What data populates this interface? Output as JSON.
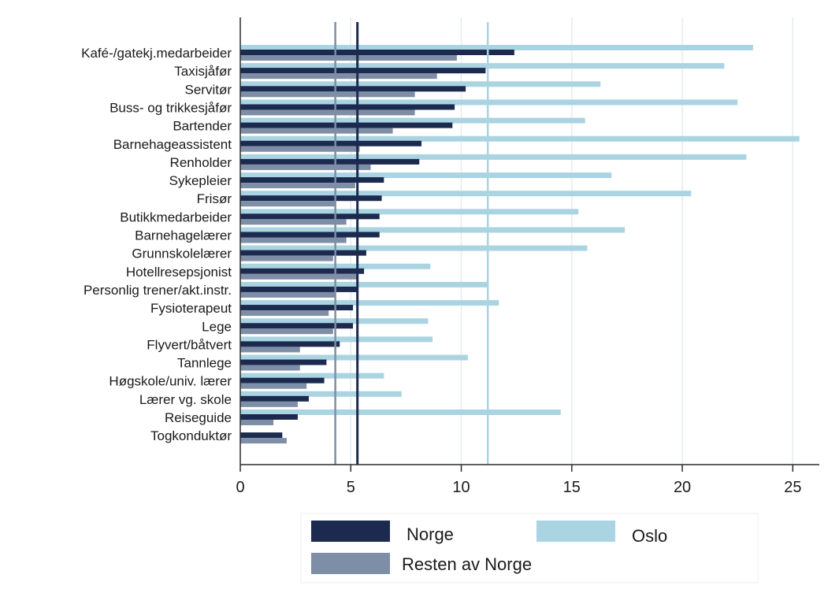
{
  "chart_data": {
    "type": "bar",
    "orientation": "horizontal",
    "title": "",
    "xlabel": "",
    "ylabel": "",
    "xlim": [
      0,
      26.2
    ],
    "xticks": [
      0,
      5,
      10,
      15,
      20,
      25
    ],
    "grid": true,
    "legend_position": "bottom",
    "categories": [
      "Kafé-/gatekj.medarbeider",
      "Taxisjåfør",
      "Servitør",
      "Buss- og trikkesjåfør",
      "Bartender",
      "Barnehageassistent",
      "Renholder",
      "Sykepleier",
      "Frisør",
      "Butikkmedarbeider",
      "Barnehagelærer",
      "Grunnskolelærer",
      "Hotellresepsjonist",
      "Personlig trener/akt.instr.",
      "Fysioterapeut",
      "Lege",
      "Flyvert/båtvert",
      "Tannlege",
      "Høgskole/univ. lærer",
      "Lærer vg. skole",
      "Reiseguide",
      "Togkonduktør"
    ],
    "series": [
      {
        "name": "Oslo",
        "color": "#aad4e2",
        "values": [
          23.2,
          21.9,
          16.3,
          22.5,
          15.6,
          25.3,
          22.9,
          16.8,
          20.4,
          15.3,
          17.4,
          15.7,
          8.6,
          11.2,
          11.7,
          8.5,
          8.7,
          10.3,
          6.5,
          7.3,
          14.5,
          0
        ]
      },
      {
        "name": "Norge",
        "color": "#1b2a4e",
        "values": [
          12.4,
          11.1,
          10.2,
          9.7,
          9.6,
          8.2,
          8.1,
          6.5,
          6.4,
          6.3,
          6.3,
          5.7,
          5.6,
          5.3,
          5.1,
          5.1,
          4.5,
          3.9,
          3.8,
          3.1,
          2.6,
          1.9
        ]
      },
      {
        "name": "Resten av Norge",
        "color": "#7e8ea6",
        "values": [
          9.8,
          8.9,
          7.9,
          7.9,
          6.9,
          5.4,
          5.9,
          5.2,
          4.3,
          4.8,
          4.8,
          4.2,
          5.3,
          4.3,
          4.0,
          4.2,
          2.7,
          2.7,
          3.0,
          2.6,
          1.5,
          2.1
        ]
      }
    ],
    "reference_lines": [
      {
        "series": "Resten av Norge",
        "value": 4.3,
        "color": "#7e8ea6"
      },
      {
        "series": "Norge",
        "value": 5.3,
        "color": "#1b2a4e"
      },
      {
        "series": "Oslo",
        "value": 11.2,
        "color": "#aad4e2"
      }
    ]
  }
}
